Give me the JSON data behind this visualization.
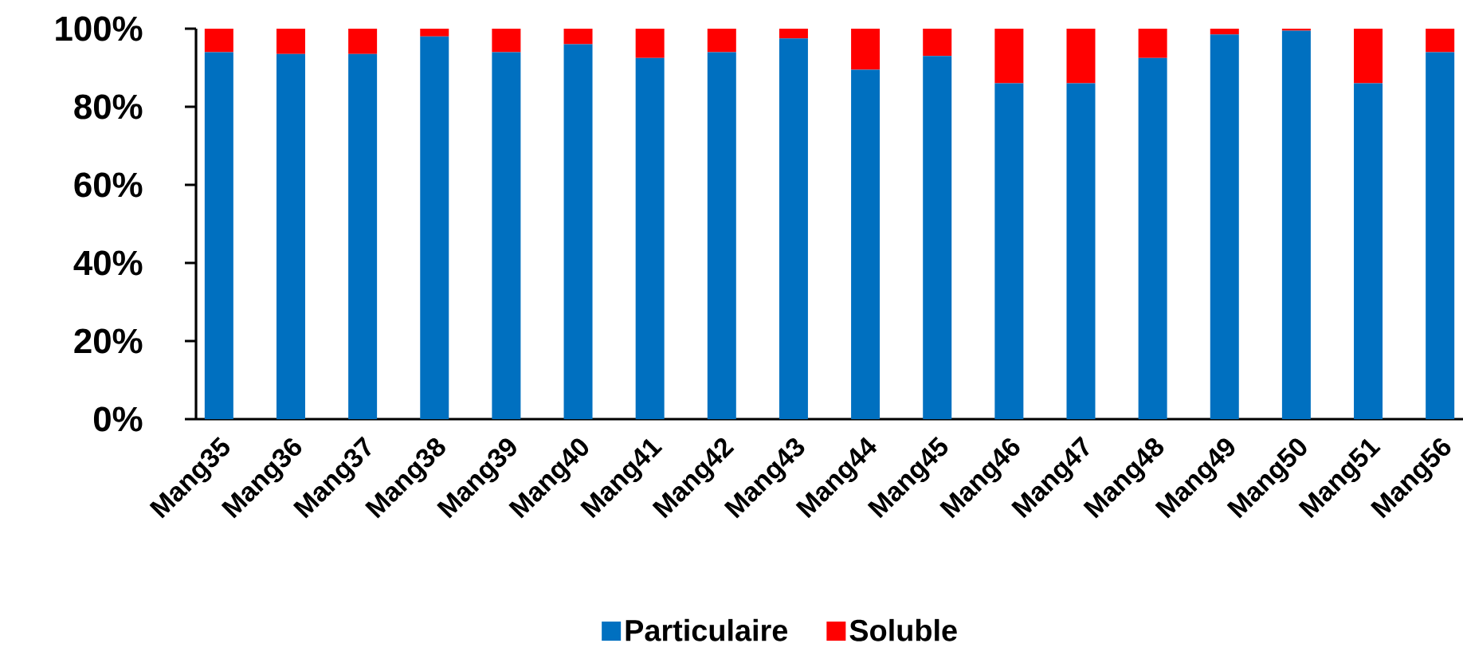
{
  "chart_data": {
    "type": "bar",
    "stacked": true,
    "categories": [
      "Mang35",
      "Mang36",
      "Mang37",
      "Mang38",
      "Mang39",
      "Mang40",
      "Mang41",
      "Mang42",
      "Mang43",
      "Mang44",
      "Mang45",
      "Mang46",
      "Mang47",
      "Mang48",
      "Mang49",
      "Mang50",
      "Mang51",
      "Mang56"
    ],
    "series": [
      {
        "name": "Particulaire",
        "color": "#0070c0",
        "values": [
          94,
          93.5,
          93.5,
          98,
          94,
          96,
          92.5,
          94,
          97.5,
          89.5,
          93,
          86,
          86,
          92.5,
          98.5,
          99.5,
          86,
          94
        ]
      },
      {
        "name": "Soluble",
        "color": "#ff0000",
        "values": [
          6,
          6.5,
          6.5,
          2,
          6,
          4,
          7.5,
          6,
          2.5,
          10.5,
          7,
          14,
          14,
          7.5,
          1.5,
          0.5,
          14,
          6
        ]
      }
    ],
    "ylim": [
      0,
      100
    ],
    "yticks": [
      {
        "value": 0,
        "label": "0%"
      },
      {
        "value": 20,
        "label": "20%"
      },
      {
        "value": 40,
        "label": "40%"
      },
      {
        "value": 60,
        "label": "60%"
      },
      {
        "value": 80,
        "label": "80%"
      },
      {
        "value": 100,
        "label": "100%"
      }
    ],
    "legend": "bottom"
  }
}
